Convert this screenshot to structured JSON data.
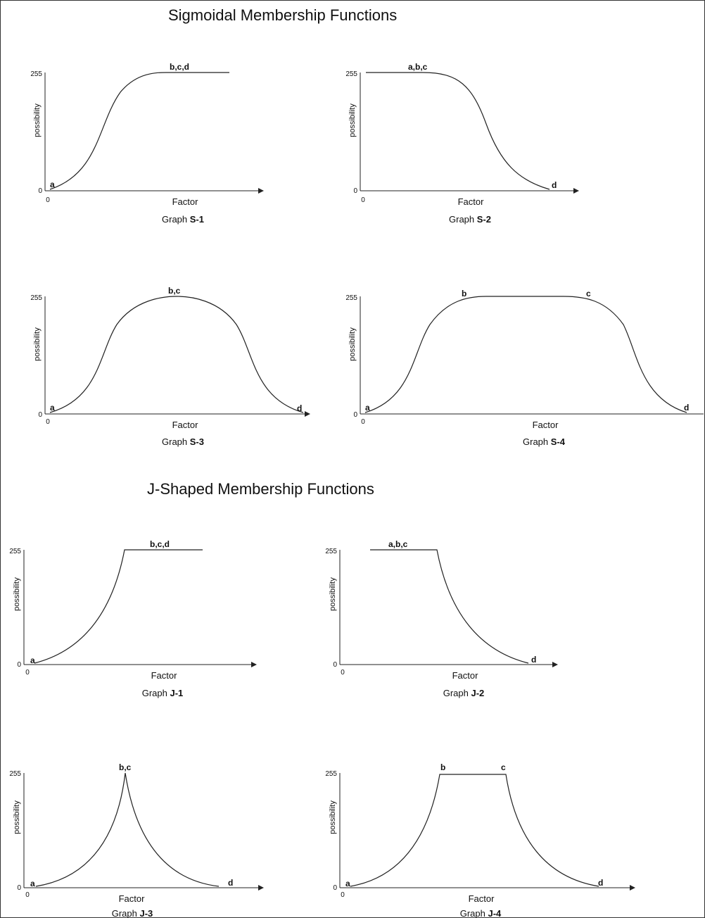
{
  "titles": {
    "sigmoidal": "Sigmoidal Membership Functions",
    "jshaped": "J-Shaped Membership Functions"
  },
  "graphs": [
    {
      "id": "s1",
      "caption_prefix": "Graph ",
      "caption_id": "S-1",
      "shape": "sigmoid-increasing",
      "xlabel": "Factor",
      "ylabel": "possibility",
      "y_max_tick": "255",
      "y_min_tick": "0",
      "x_origin_tick": "0",
      "point_labels": [
        "a",
        "b,c,d"
      ]
    },
    {
      "id": "s2",
      "caption_prefix": "Graph ",
      "caption_id": "S-2",
      "shape": "sigmoid-decreasing",
      "xlabel": "Factor",
      "ylabel": "possibility",
      "y_max_tick": "255",
      "y_min_tick": "0",
      "x_origin_tick": "0",
      "point_labels": [
        "a,b,c",
        "d"
      ]
    },
    {
      "id": "s3",
      "caption_prefix": "Graph ",
      "caption_id": "S-3",
      "shape": "sigmoid-symmetric",
      "xlabel": "Factor",
      "ylabel": "possibility",
      "y_max_tick": "255",
      "y_min_tick": "0",
      "x_origin_tick": "0",
      "point_labels": [
        "a",
        "b,c",
        "d"
      ]
    },
    {
      "id": "s4",
      "caption_prefix": "Graph ",
      "caption_id": "S-4",
      "shape": "sigmoid-plateau",
      "xlabel": "Factor",
      "ylabel": "possibility",
      "y_max_tick": "255",
      "y_min_tick": "0",
      "x_origin_tick": "0",
      "point_labels": [
        "a",
        "b",
        "c",
        "d"
      ]
    },
    {
      "id": "j1",
      "caption_prefix": "Graph ",
      "caption_id": "J-1",
      "shape": "j-increasing",
      "xlabel": "Factor",
      "ylabel": "possibility",
      "y_max_tick": "255",
      "y_min_tick": "0",
      "x_origin_tick": "0",
      "point_labels": [
        "a",
        "b,c,d"
      ]
    },
    {
      "id": "j2",
      "caption_prefix": "Graph ",
      "caption_id": "J-2",
      "shape": "j-decreasing",
      "xlabel": "Factor",
      "ylabel": "possibility",
      "y_max_tick": "255",
      "y_min_tick": "0",
      "x_origin_tick": "0",
      "point_labels": [
        "a,b,c",
        "d"
      ]
    },
    {
      "id": "j3",
      "caption_prefix": "Graph ",
      "caption_id": "J-3",
      "shape": "j-symmetric",
      "xlabel": "Factor",
      "ylabel": "possibility",
      "y_max_tick": "255",
      "y_min_tick": "0",
      "x_origin_tick": "0",
      "point_labels": [
        "a",
        "b,c",
        "d"
      ]
    },
    {
      "id": "j4",
      "caption_prefix": "Graph ",
      "caption_id": "J-4",
      "shape": "j-plateau",
      "xlabel": "Factor",
      "ylabel": "possibility",
      "y_max_tick": "255",
      "y_min_tick": "0",
      "x_origin_tick": "0",
      "point_labels": [
        "a",
        "b",
        "c",
        "d"
      ]
    }
  ]
}
